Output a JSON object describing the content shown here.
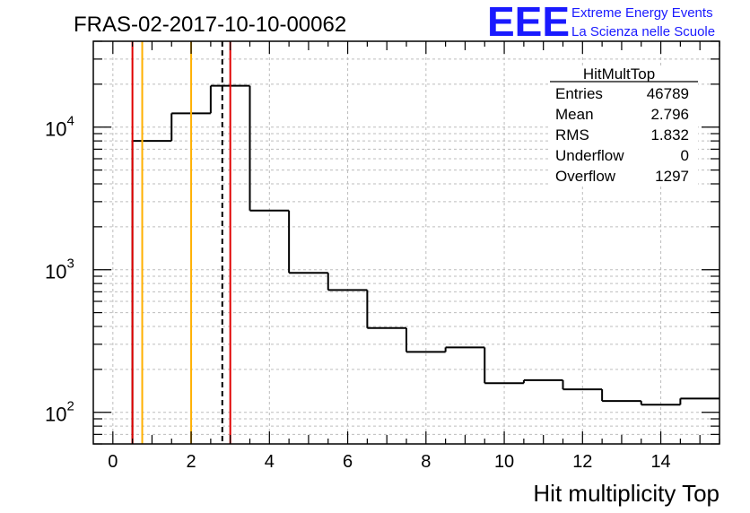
{
  "header": {
    "run_title": "FRAS-02-2017-10-10-00062",
    "logo_text": "EEE",
    "logo_line1": "Extreme Energy Events",
    "logo_line2": "La Scienza nelle Scuole",
    "logo_color": "#1a1aff"
  },
  "stats": {
    "title": "HitMultTop",
    "rows": [
      {
        "label": "Entries",
        "value": "46789"
      },
      {
        "label": "Mean",
        "value": "2.796"
      },
      {
        "label": "RMS",
        "value": "1.832"
      },
      {
        "label": "Underflow",
        "value": "0"
      },
      {
        "label": "Overflow",
        "value": "1297"
      }
    ]
  },
  "chart_data": {
    "type": "bar",
    "style": "step-histogram",
    "xlabel": "Hit multiplicity Top",
    "ylabel": "",
    "xlim": [
      -0.5,
      15.5
    ],
    "ylim": [
      60,
      40000
    ],
    "yscale": "log",
    "grid": true,
    "x_ticks": [
      "0",
      "2",
      "4",
      "6",
      "8",
      "10",
      "12",
      "14"
    ],
    "y_ticks": [
      {
        "base": "10",
        "exp": "2"
      },
      {
        "base": "10",
        "exp": "3"
      },
      {
        "base": "10",
        "exp": "4"
      }
    ],
    "bin_edges": [
      0.5,
      1.5,
      2.5,
      3.5,
      4.5,
      5.5,
      6.5,
      7.5,
      8.5,
      9.5,
      10.5,
      11.5,
      12.5,
      13.5,
      14.5,
      15.5
    ],
    "values": [
      8000,
      12500,
      19500,
      2600,
      950,
      720,
      390,
      265,
      285,
      160,
      168,
      145,
      120,
      113,
      125
    ],
    "vertical_lines": [
      {
        "x": 0.5,
        "color": "#e00000",
        "style": "solid"
      },
      {
        "x": 0.75,
        "color": "#ffb000",
        "style": "solid"
      },
      {
        "x": 2.0,
        "color": "#ffb000",
        "style": "solid"
      },
      {
        "x": 2.796,
        "color": "#000000",
        "style": "dashed"
      },
      {
        "x": 3.0,
        "color": "#e00000",
        "style": "solid"
      }
    ]
  }
}
